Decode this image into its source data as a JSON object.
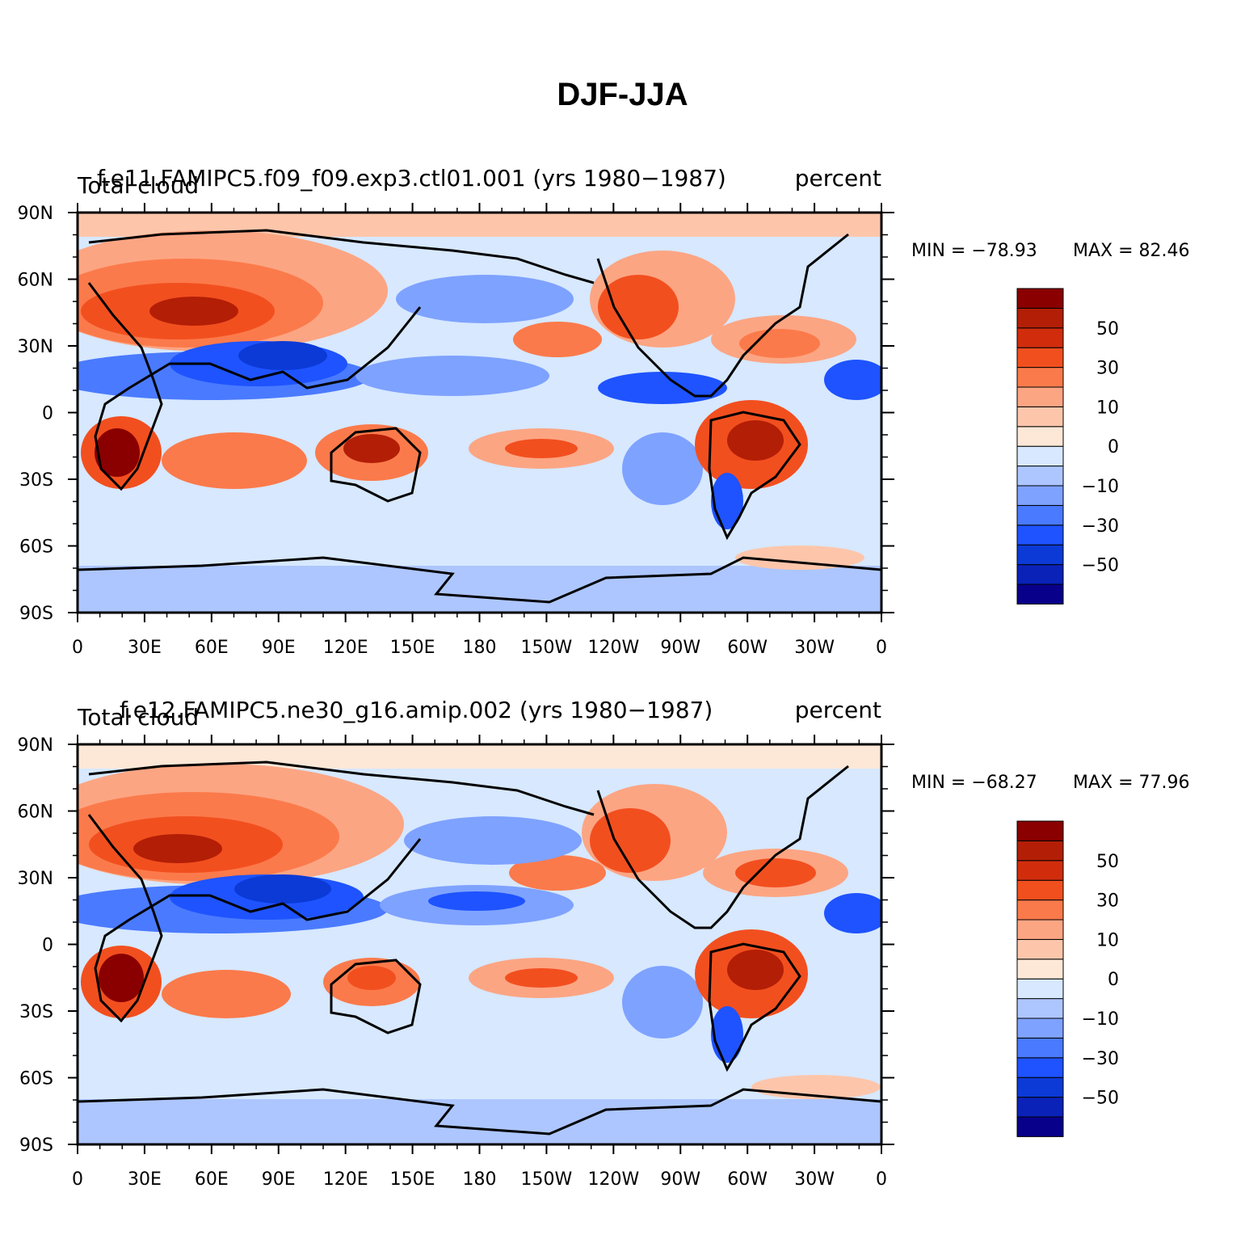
{
  "title": "DJF-JJA",
  "palette": [
    "#08008a",
    "#0a22b8",
    "#0b3ad6",
    "#1e53ff",
    "#4a7aff",
    "#7ea2ff",
    "#adc6ff",
    "#d7e8ff",
    "#fde8d8",
    "#fdc6ab",
    "#fca583",
    "#fb7a4b",
    "#f24f1f",
    "#d12d0d",
    "#b31e06",
    "#8a0000"
  ],
  "colorbar_labels": [
    "50",
    "30",
    "10",
    "0",
    "−10",
    "−30",
    "−50"
  ],
  "x_ticks": [
    "0",
    "30E",
    "60E",
    "90E",
    "120E",
    "150E",
    "180",
    "150W",
    "120W",
    "90W",
    "60W",
    "30W",
    "0"
  ],
  "y_ticks": [
    "90N",
    "60N",
    "30N",
    "0",
    "30S",
    "60S",
    "90S"
  ],
  "panels": [
    {
      "case_title": "f.e11.FAMIPC5.f09_f09.exp3.ctl01.001 (yrs 1980−1987)",
      "variable": "Total cloud",
      "units": "percent",
      "min_label": "MIN = −78.93",
      "max_label": "MAX =  82.46"
    },
    {
      "case_title": "f.e12.FAMIPC5.ne30_g16.amip.002 (yrs 1980−1987)",
      "variable": "Total cloud",
      "units": "percent",
      "min_label": "MIN = −68.27",
      "max_label": "MAX =  77.96"
    }
  ]
}
